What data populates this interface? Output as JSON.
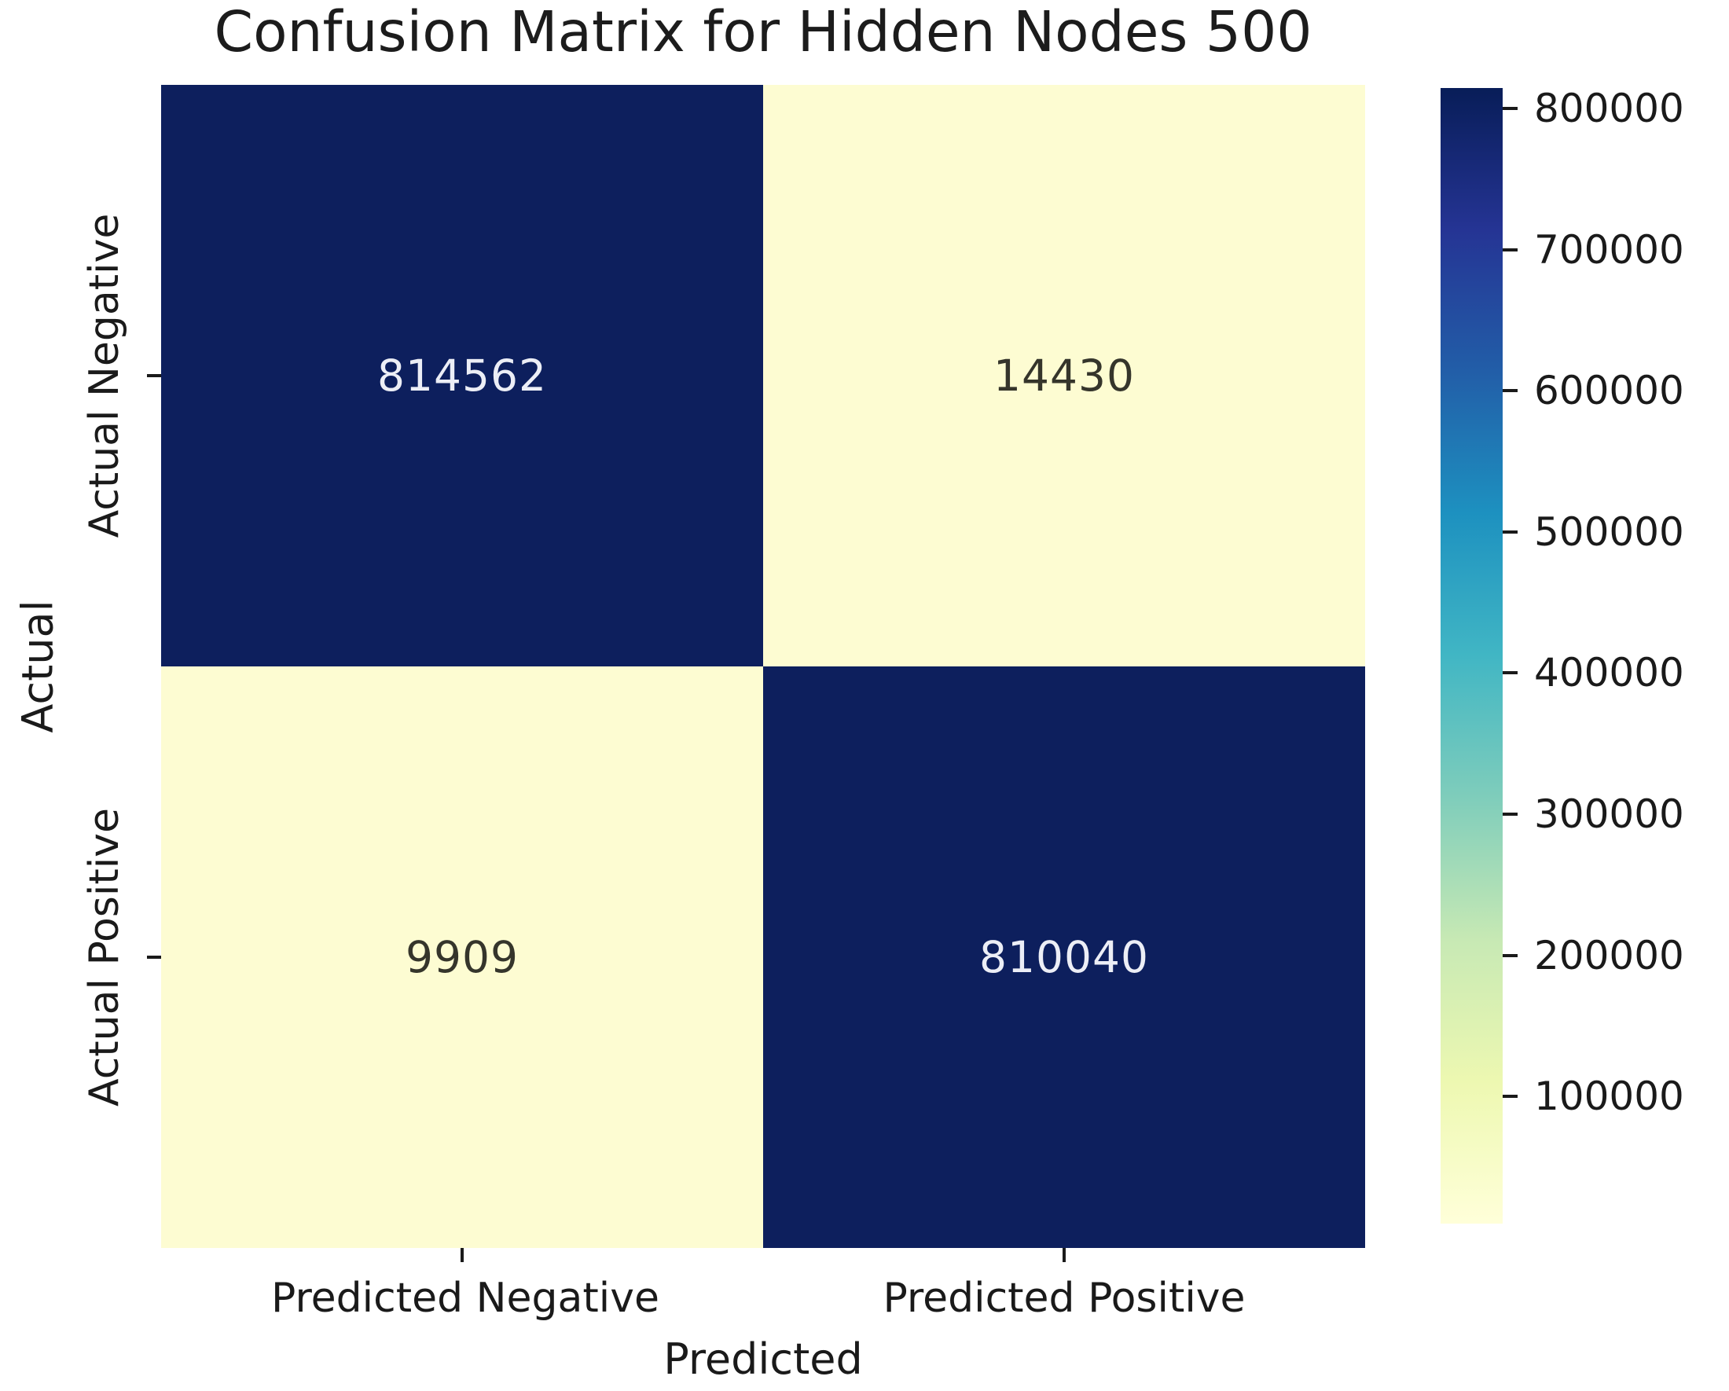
{
  "chart_data": {
    "type": "heatmap",
    "title": "Confusion Matrix for Hidden Nodes 500",
    "xlabel": "Predicted",
    "ylabel": "Actual",
    "x_tick_labels": [
      "Predicted Negative",
      "Predicted Positive"
    ],
    "y_tick_labels": [
      "Actual Negative",
      "Actual Positive"
    ],
    "values": [
      [
        814562,
        14430
      ],
      [
        9909,
        810040
      ]
    ],
    "vmin": 9909,
    "vmax": 814562,
    "colormap": "YlGnBu",
    "cell_colors": [
      [
        "#0d1f5d",
        "#fdfcd2"
      ],
      [
        "#fdfcd2",
        "#0d1f5d"
      ]
    ],
    "cell_text_colors": [
      [
        "#eceef6",
        "#35352b"
      ],
      [
        "#35352b",
        "#eceef6"
      ]
    ],
    "colorbar": {
      "ticks": [
        800000,
        700000,
        600000,
        500000,
        400000,
        300000,
        200000,
        100000
      ],
      "gradient_stops_top_to_bottom": [
        "#081d58",
        "#253494",
        "#225ea8",
        "#1d91c0",
        "#41b6c4",
        "#7fcdbb",
        "#c7e9b4",
        "#edf8b1",
        "#ffffd9"
      ]
    },
    "grid": false,
    "legend_position": "colorbar-right"
  },
  "colors": {
    "background": "#ffffff",
    "text": "#1a1a1a"
  }
}
